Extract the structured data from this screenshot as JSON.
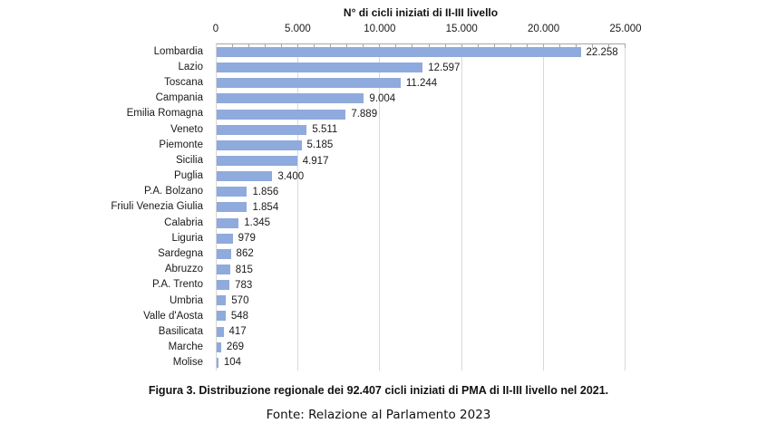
{
  "chart_data": {
    "type": "bar",
    "orientation": "horizontal",
    "title": "N° di cicli iniziati di II-III livello",
    "categories": [
      "Lombardia",
      "Lazio",
      "Toscana",
      "Campania",
      "Emilia Romagna",
      "Veneto",
      "Piemonte",
      "Sicilia",
      "Puglia",
      "P.A. Bolzano",
      "Friuli Venezia Giulia",
      "Calabria",
      "Liguria",
      "Sardegna",
      "Abruzzo",
      "P.A. Trento",
      "Umbria",
      "Valle d'Aosta",
      "Basilicata",
      "Marche",
      "Molise"
    ],
    "values": [
      22258,
      12597,
      11244,
      9004,
      7889,
      5511,
      5185,
      4917,
      3400,
      1856,
      1854,
      1345,
      979,
      862,
      815,
      783,
      570,
      548,
      417,
      269,
      104
    ],
    "value_labels": [
      "22.258",
      "12.597",
      "11.244",
      "9.004",
      "7.889",
      "5.511",
      "5.185",
      "4.917",
      "3.400",
      "1.856",
      "1.854",
      "1.345",
      "979",
      "862",
      "815",
      "783",
      "570",
      "548",
      "417",
      "269",
      "104"
    ],
    "xlim": [
      0,
      25000
    ],
    "x_tick_values": [
      0,
      5000,
      10000,
      15000,
      20000,
      25000
    ],
    "x_tick_labels": [
      "0",
      "5.000",
      "10.000",
      "15.000",
      "20.000",
      "25.000"
    ],
    "minor_tick_interval": 1000,
    "grid": true,
    "legend": false,
    "bar_color": "#8faadc",
    "axis_line_color": "#a6a6a6",
    "gridline_color": "#d9d9d9",
    "total": "92.407"
  },
  "caption": {
    "text": "Figura 3. Distribuzione regionale dei 92.407 cicli iniziati di PMA di II-III livello nel 2021.",
    "source": "Fonte: Relazione al Parlamento 2023"
  }
}
